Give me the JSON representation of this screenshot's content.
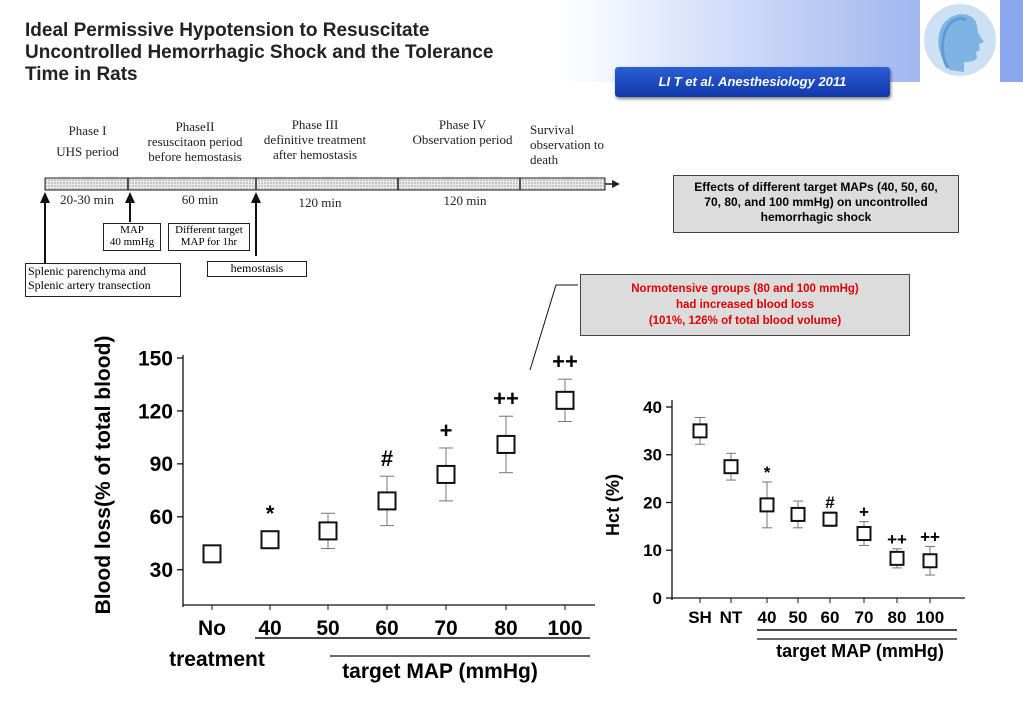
{
  "header": {
    "title_lines": [
      "Ideal Permissive Hypotension to Resuscitate",
      "Uncontrolled Hemorrhagic Shock and the Tolerance",
      "Time in Rats"
    ],
    "citation": "LI T et al. Anesthesiology 2011"
  },
  "timeline": {
    "phases": [
      {
        "lines": [
          "Phase I",
          "UHS period"
        ]
      },
      {
        "lines": [
          "PhaseII",
          "resuscitaon period",
          "before hemostasis"
        ]
      },
      {
        "lines": [
          "Phase III",
          "definitive treatment",
          "after hemostasis"
        ]
      },
      {
        "lines": [
          "Phase IV",
          "Observation period"
        ]
      },
      {
        "lines": [
          "Survival",
          "observation  to",
          "death"
        ]
      }
    ],
    "durations": [
      "20-30 min",
      "60 min",
      "120 min",
      "120 min"
    ],
    "boxes": {
      "map40": [
        "MAP",
        "40 mmHg"
      ],
      "different_map": [
        "Different target",
        "MAP for 1hr"
      ],
      "hemostasis": "hemostasis",
      "splenic": [
        "Splenic parenchyma and",
        "Splenic artery transection"
      ]
    }
  },
  "callouts": {
    "effects": "Effects of different target MAPs (40, 50, 60, 70, 80, and 100 mmHg) on uncontrolled hemorrhagic shock",
    "normotensive_lines": [
      "Normotensive groups (80 and 100 mmHg)",
      "had increased blood loss",
      "(101%, 126% of total blood volume)"
    ],
    "normotensive_color": "#e00000"
  },
  "chart_data": [
    {
      "type": "scatter",
      "ylabel": "Blood loss(% of total blood)",
      "xlabel": "target MAP (mmHg)",
      "categories": [
        "No",
        "40",
        "50",
        "60",
        "70",
        "80",
        "100"
      ],
      "category_sublabel": "treatment",
      "yticks": [
        30,
        60,
        90,
        120,
        150
      ],
      "ylim": [
        10,
        150
      ],
      "values": [
        39,
        47,
        52,
        69,
        84,
        101,
        126
      ],
      "errors": [
        0,
        0,
        10,
        14,
        15,
        16,
        12
      ],
      "markers": [
        "",
        "*",
        "",
        "#",
        "+",
        "++",
        "++"
      ]
    },
    {
      "type": "scatter",
      "ylabel": "Hct (%)",
      "xlabel": "target MAP (mmHg)",
      "categories": [
        "SH",
        "NT",
        "40",
        "50",
        "60",
        "70",
        "80",
        "100"
      ],
      "yticks": [
        0,
        10,
        20,
        30,
        40
      ],
      "ylim": [
        0,
        40
      ],
      "values": [
        35,
        27.5,
        19.5,
        17.5,
        16.5,
        13.5,
        8.3,
        7.8
      ],
      "errors": [
        2.8,
        2.8,
        4.8,
        2.8,
        1.5,
        2.5,
        2.0,
        3.0
      ],
      "markers": [
        "",
        "",
        "*",
        "",
        "#",
        "+",
        "++",
        "++"
      ]
    }
  ]
}
